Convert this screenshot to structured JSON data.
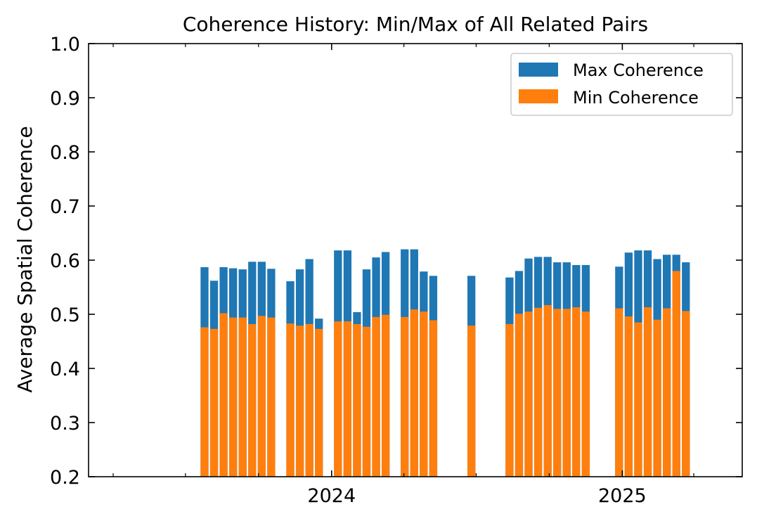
{
  "chart_data": {
    "type": "bar",
    "stacking": "overlay",
    "title": "Coherence History: Min/Max of All Related Pairs",
    "xlabel": "",
    "ylabel": "Average Spatial Coherence",
    "ylim": [
      0.2,
      1.0
    ],
    "yticks": [
      "0.2",
      "0.3",
      "0.4",
      "0.5",
      "0.6",
      "0.7",
      "0.8",
      "0.9",
      "1.0"
    ],
    "xlim": [
      "2023-03-01",
      "2025-06-01"
    ],
    "xticks": [
      {
        "date": "2024-01-01",
        "label": "2024"
      },
      {
        "date": "2025-01-01",
        "label": "2025"
      }
    ],
    "x_minor_ticks": [
      "2023-04-01",
      "2023-07-01",
      "2023-10-01",
      "2024-04-01",
      "2024-07-01",
      "2024-10-01",
      "2025-04-01"
    ],
    "x": [
      "2023-07-25",
      "2023-08-06",
      "2023-08-18",
      "2023-08-30",
      "2023-09-11",
      "2023-09-23",
      "2023-10-05",
      "2023-10-17",
      "2023-11-10",
      "2023-11-22",
      "2023-12-04",
      "2023-12-16",
      "2024-01-09",
      "2024-01-21",
      "2024-02-02",
      "2024-02-14",
      "2024-02-26",
      "2024-03-09",
      "2024-04-02",
      "2024-04-14",
      "2024-04-26",
      "2024-05-08",
      "2024-06-25",
      "2024-08-12",
      "2024-08-24",
      "2024-09-05",
      "2024-09-17",
      "2024-09-29",
      "2024-10-11",
      "2024-10-23",
      "2024-11-04",
      "2024-11-16",
      "2024-12-28",
      "2025-01-09",
      "2025-01-21",
      "2025-02-02",
      "2025-02-14",
      "2025-02-26",
      "2025-03-10",
      "2025-03-22"
    ],
    "series": [
      {
        "name": "Max Coherence",
        "color": "#1f77b4",
        "values": [
          0.587,
          0.562,
          0.587,
          0.585,
          0.583,
          0.597,
          0.597,
          0.584,
          0.561,
          0.583,
          0.602,
          0.492,
          0.618,
          0.618,
          0.504,
          0.583,
          0.605,
          0.615,
          0.62,
          0.62,
          0.579,
          0.571,
          0.571,
          0.568,
          0.58,
          0.603,
          0.606,
          0.606,
          0.596,
          0.596,
          0.591,
          0.591,
          0.588,
          0.614,
          0.618,
          0.618,
          0.602,
          0.61,
          0.61,
          0.596
        ]
      },
      {
        "name": "Min Coherence",
        "color": "#ff7f0e",
        "values": [
          0.476,
          0.473,
          0.502,
          0.494,
          0.494,
          0.482,
          0.497,
          0.494,
          0.483,
          0.479,
          0.482,
          0.473,
          0.487,
          0.487,
          0.482,
          0.477,
          0.495,
          0.499,
          0.495,
          0.509,
          0.505,
          0.489,
          0.479,
          0.482,
          0.501,
          0.505,
          0.512,
          0.517,
          0.51,
          0.51,
          0.513,
          0.505,
          0.511,
          0.496,
          0.485,
          0.513,
          0.49,
          0.511,
          0.58,
          0.506
        ]
      }
    ],
    "legend": {
      "position": "top-right",
      "entries": [
        "Max Coherence",
        "Min Coherence"
      ]
    },
    "grid": false
  }
}
